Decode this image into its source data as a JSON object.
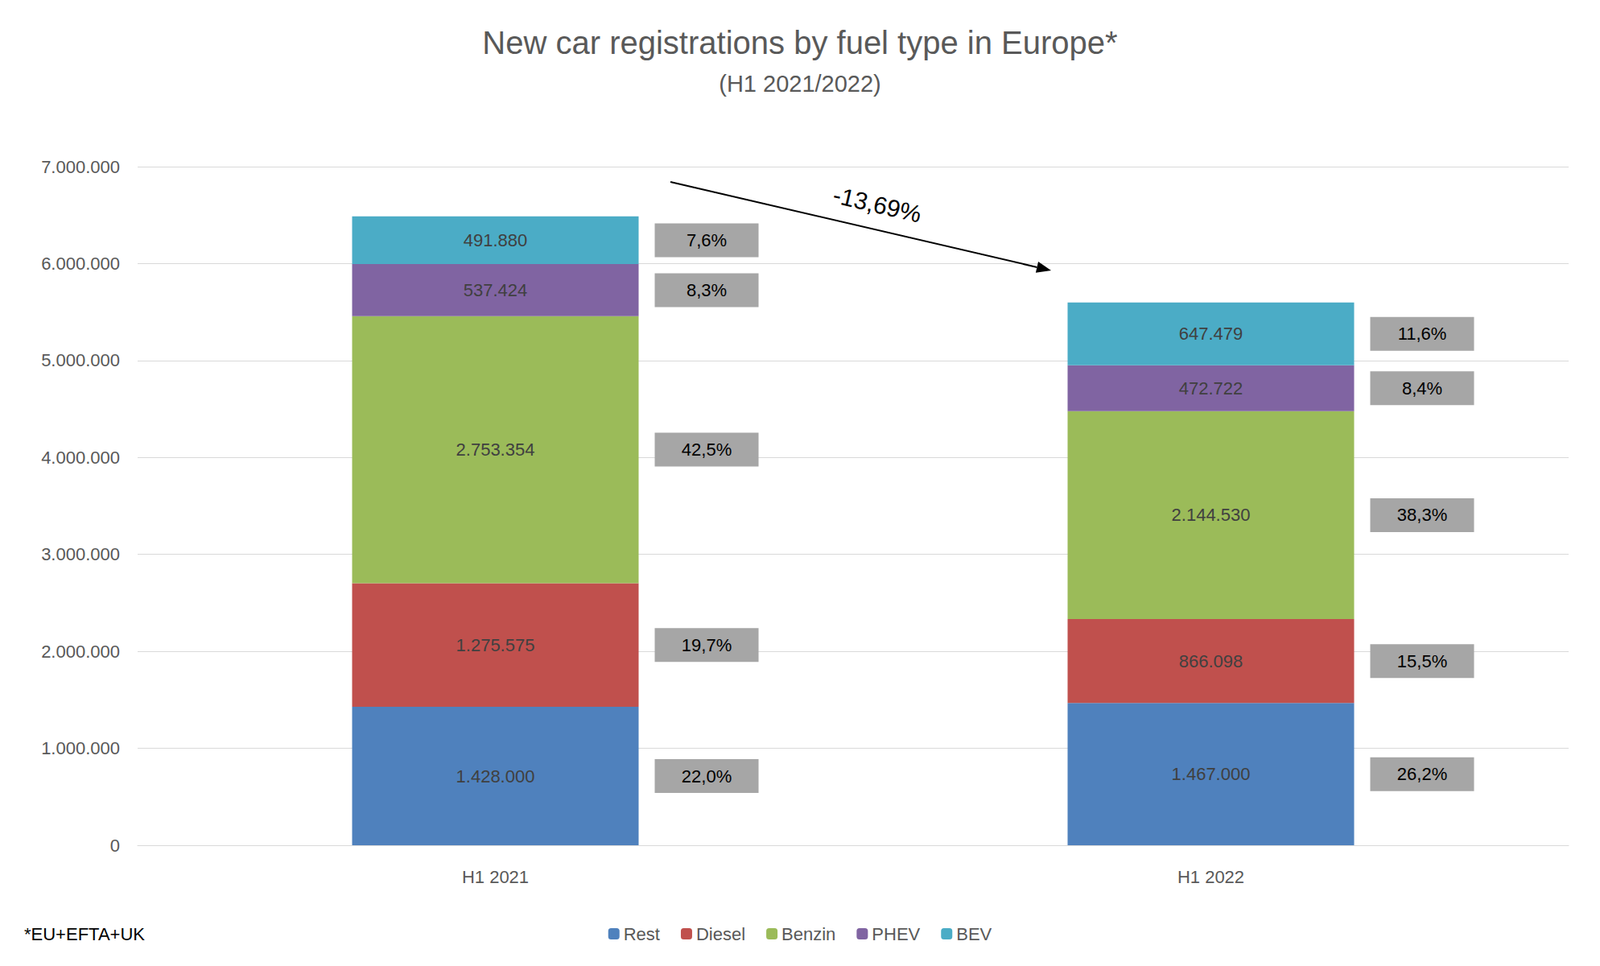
{
  "chart_data": {
    "type": "bar",
    "title": "New car registrations by fuel type in Europe*",
    "subtitle": "(H1 2021/2022)",
    "footnote": "*EU+EFTA+UK",
    "categories": [
      "H1 2021",
      "H1 2022"
    ],
    "stacked": true,
    "data_labels": true,
    "grid": true,
    "legend": "bottom",
    "ylim": [
      0,
      7000000
    ],
    "yticks": [
      0,
      {
        "value": 1000000,
        "label": "1.000.000"
      },
      {
        "value": 2000000,
        "label": "2.000.000"
      },
      {
        "value": 3000000,
        "label": "3.000.000"
      },
      {
        "value": 4000000,
        "label": "4.000.000"
      },
      {
        "value": 5000000,
        "label": "5.000.000"
      },
      {
        "value": 6000000,
        "label": "6.000.000"
      },
      {
        "value": 7000000,
        "label": "7.000.000"
      }
    ],
    "series": [
      {
        "name": "Rest",
        "color": "#4F81BD",
        "values": [
          1428000,
          1467000
        ],
        "value_labels": [
          "1.428.000",
          "1.467.000"
        ],
        "shares": [
          22.0,
          26.2
        ],
        "share_labels": [
          "22,0%",
          "26,2%"
        ]
      },
      {
        "name": "Diesel",
        "color": "#C0504D",
        "values": [
          1275575,
          866098
        ],
        "value_labels": [
          "1.275.575",
          "866.098"
        ],
        "shares": [
          19.7,
          15.5
        ],
        "share_labels": [
          "19,7%",
          "15,5%"
        ]
      },
      {
        "name": "Benzin",
        "color": "#9BBB59",
        "values": [
          2753354,
          2144530
        ],
        "value_labels": [
          "2.753.354",
          "2.144.530"
        ],
        "shares": [
          42.5,
          38.3
        ],
        "share_labels": [
          "42,5%",
          "38,3%"
        ]
      },
      {
        "name": "PHEV",
        "color": "#8064A2",
        "values": [
          537424,
          472722
        ],
        "value_labels": [
          "537.424",
          "472.722"
        ],
        "shares": [
          8.3,
          8.4
        ],
        "share_labels": [
          "8,3%",
          "8,4%"
        ]
      },
      {
        "name": "BEV",
        "color": "#4BACC6",
        "values": [
          491880,
          647479
        ],
        "value_labels": [
          "491.880",
          "647.479"
        ],
        "shares": [
          7.6,
          11.6
        ],
        "share_labels": [
          "7,6%",
          "11,6%"
        ]
      }
    ],
    "annotations": [
      {
        "text": "-13,69%"
      }
    ]
  }
}
